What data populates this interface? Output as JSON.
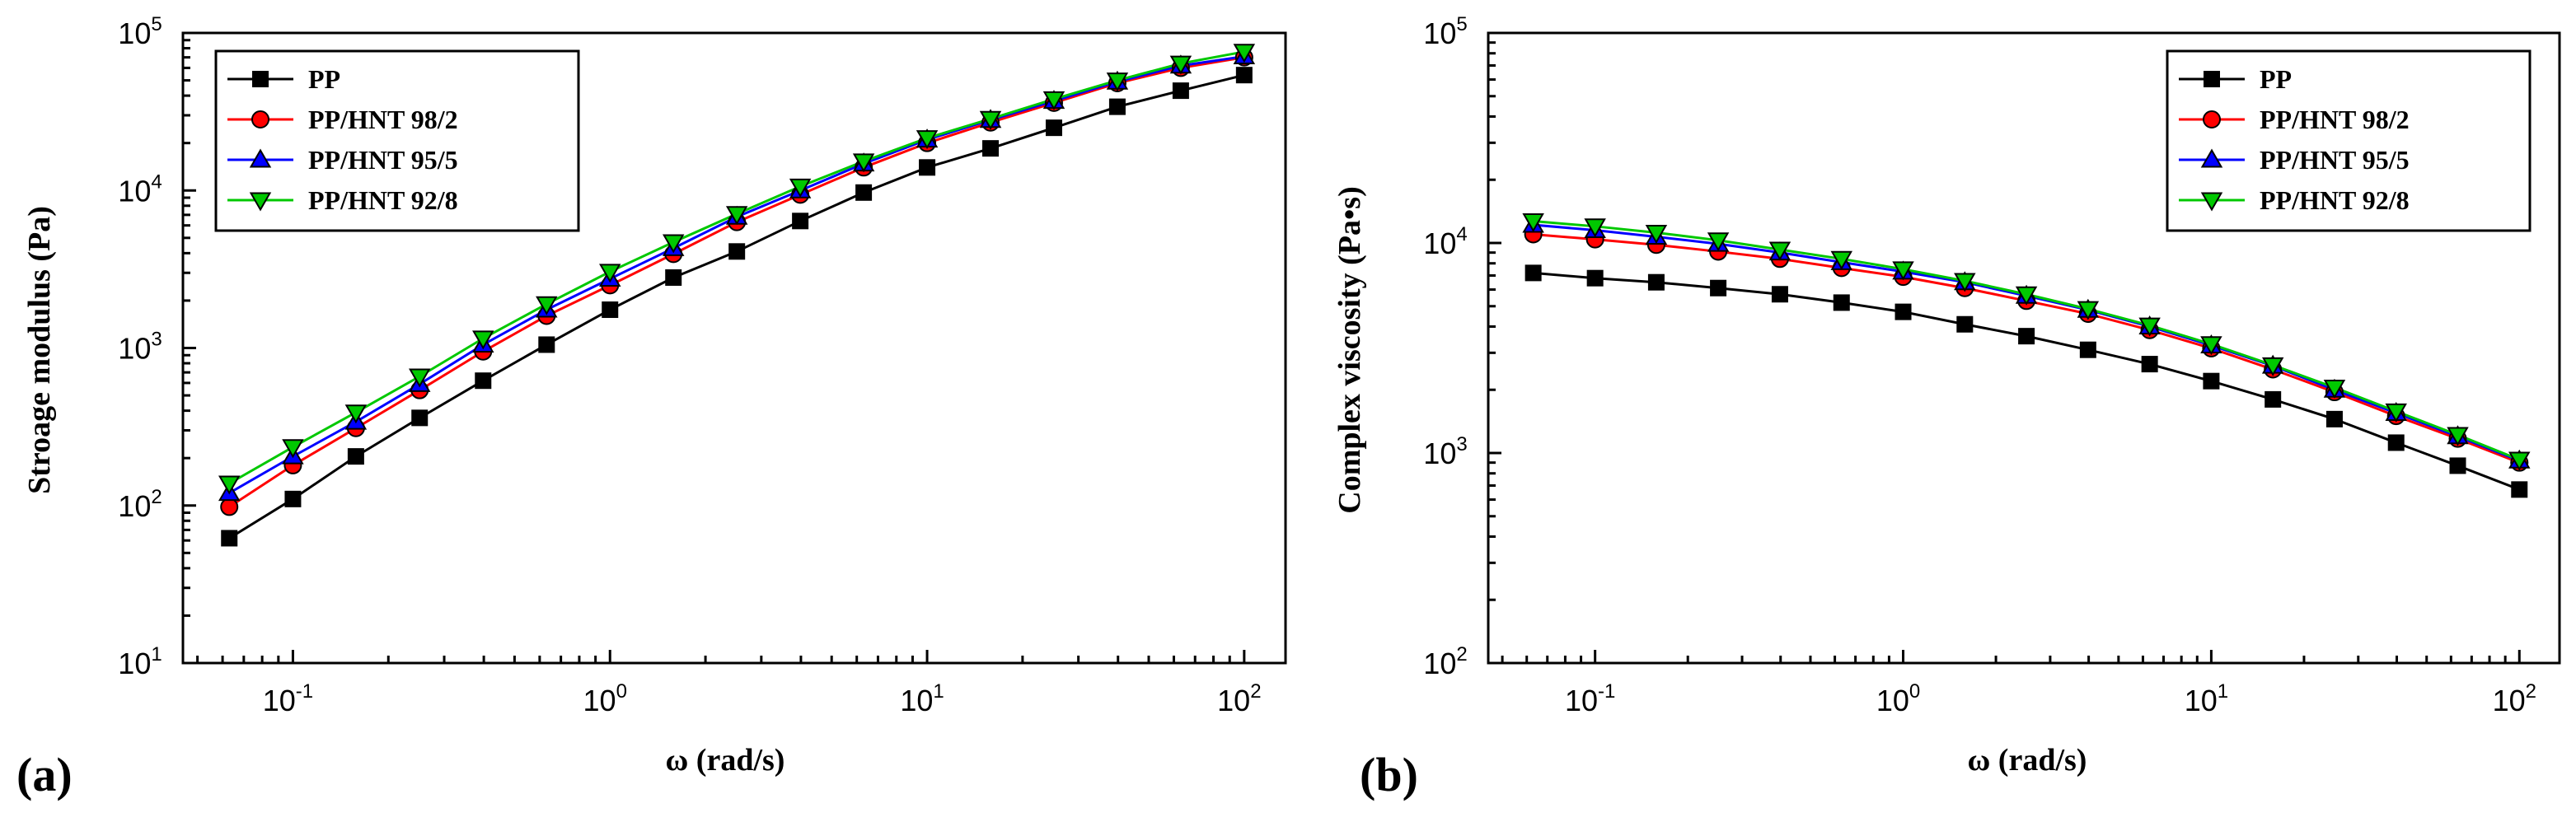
{
  "chart_data": [
    {
      "type": "line",
      "panel_label": "(a)",
      "xlabel": "ω (rad/s)",
      "ylabel": "Stroage modulus (Pa)",
      "xscale": "log",
      "yscale": "log",
      "xlim": [
        0.045,
        135
      ],
      "ylim": [
        10,
        100000
      ],
      "x_ticks": [
        {
          "base": "10",
          "exp": "-1"
        },
        {
          "base": "10",
          "exp": "0"
        },
        {
          "base": "10",
          "exp": "1"
        },
        {
          "base": "10",
          "exp": "2"
        }
      ],
      "y_ticks": [
        {
          "base": "10",
          "exp": "1"
        },
        {
          "base": "10",
          "exp": "2"
        },
        {
          "base": "10",
          "exp": "3"
        },
        {
          "base": "10",
          "exp": "4"
        },
        {
          "base": "10",
          "exp": "5"
        }
      ],
      "legend_position": "top-left",
      "x": [
        0.063,
        0.1,
        0.158,
        0.251,
        0.398,
        0.631,
        1.0,
        1.585,
        2.512,
        3.981,
        6.31,
        10.0,
        15.85,
        25.12,
        39.81,
        63.1,
        100.0
      ],
      "series": [
        {
          "name": "PP",
          "color": "#000000",
          "marker": "square",
          "values": [
            62,
            110,
            205,
            360,
            620,
            1050,
            1750,
            2800,
            4100,
            6400,
            9700,
            14000,
            18500,
            25000,
            34000,
            43000,
            54000
          ]
        },
        {
          "name": "PP/HNT 98/2",
          "color": "#ff0000",
          "marker": "circle",
          "values": [
            98,
            180,
            310,
            540,
            950,
            1600,
            2500,
            3950,
            6300,
            9400,
            14000,
            20000,
            27000,
            36000,
            48000,
            60000,
            70000
          ]
        },
        {
          "name": "PP/HNT 95/5",
          "color": "#0000ff",
          "marker": "triangle-up",
          "values": [
            120,
            205,
            340,
            590,
            1050,
            1750,
            2750,
            4300,
            6800,
            10000,
            14800,
            21000,
            28000,
            37000,
            49000,
            62000,
            71000
          ]
        },
        {
          "name": "PP/HNT 92/8",
          "color": "#00c800",
          "marker": "triangle-down",
          "values": [
            138,
            235,
            390,
            660,
            1150,
            1900,
            3050,
            4700,
            7100,
            10600,
            15300,
            21500,
            28500,
            38000,
            50000,
            64000,
            76000
          ]
        }
      ]
    },
    {
      "type": "line",
      "panel_label": "(b)",
      "xlabel": "ω (rad/s)",
      "ylabel": "Complex viscosity (Pa•s)",
      "xscale": "log",
      "yscale": "log",
      "xlim": [
        0.045,
        135
      ],
      "ylim": [
        100,
        100000
      ],
      "x_ticks": [
        {
          "base": "10",
          "exp": "-1"
        },
        {
          "base": "10",
          "exp": "0"
        },
        {
          "base": "10",
          "exp": "1"
        },
        {
          "base": "10",
          "exp": "2"
        }
      ],
      "y_ticks": [
        {
          "base": "10",
          "exp": "2"
        },
        {
          "base": "10",
          "exp": "3"
        },
        {
          "base": "10",
          "exp": "4"
        },
        {
          "base": "10",
          "exp": "5"
        }
      ],
      "legend_position": "top-right",
      "x": [
        0.063,
        0.1,
        0.158,
        0.251,
        0.398,
        0.631,
        1.0,
        1.585,
        2.512,
        3.981,
        6.31,
        10.0,
        15.85,
        25.12,
        39.81,
        63.1,
        100.0
      ],
      "series": [
        {
          "name": "PP",
          "color": "#000000",
          "marker": "square",
          "values": [
            7200,
            6800,
            6500,
            6100,
            5700,
            5200,
            4700,
            4100,
            3600,
            3100,
            2650,
            2200,
            1800,
            1450,
            1120,
            870,
            670
          ]
        },
        {
          "name": "PP/HNT 98/2",
          "color": "#ff0000",
          "marker": "circle",
          "values": [
            11000,
            10400,
            9800,
            9100,
            8400,
            7600,
            6900,
            6100,
            5300,
            4600,
            3850,
            3150,
            2500,
            1950,
            1500,
            1170,
            900
          ]
        },
        {
          "name": "PP/HNT 95/5",
          "color": "#0000ff",
          "marker": "triangle-up",
          "values": [
            12200,
            11500,
            10700,
            9900,
            9000,
            8100,
            7300,
            6500,
            5600,
            4800,
            4000,
            3250,
            2600,
            2000,
            1550,
            1200,
            920
          ]
        },
        {
          "name": "PP/HNT 92/8",
          "color": "#00c800",
          "marker": "triangle-down",
          "values": [
            12700,
            12000,
            11200,
            10300,
            9300,
            8400,
            7500,
            6600,
            5700,
            4850,
            4050,
            3300,
            2620,
            2050,
            1580,
            1220,
            930
          ]
        }
      ]
    }
  ]
}
